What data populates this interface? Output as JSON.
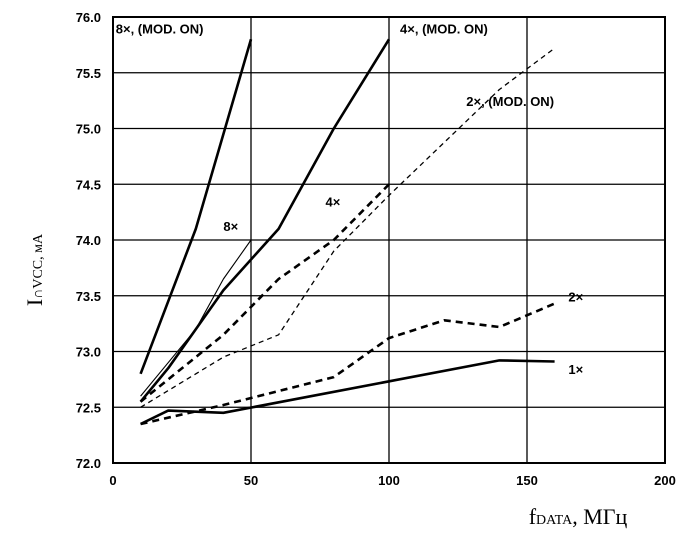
{
  "chart_data": {
    "type": "line",
    "xlabel_main": "f",
    "xlabel_sub": "DATA",
    "xlabel_rest": ", МГц",
    "ylabel_main": "I",
    "ylabel_sub": "∩VCC",
    "ylabel_rest": ", мА",
    "xlim": [
      0,
      200
    ],
    "ylim": [
      72.0,
      76.0
    ],
    "x_ticks": [
      "0",
      "50",
      "100",
      "150",
      "200"
    ],
    "y_ticks": [
      "72.0",
      "72.5",
      "73.0",
      "73.5",
      "74.0",
      "74.5",
      "75.0",
      "75.5",
      "76.0"
    ],
    "grid": true,
    "series": [
      {
        "name": "8×, (MOD. ON)",
        "style": "solid-thick",
        "x": [
          10,
          30,
          50
        ],
        "y": [
          72.8,
          74.1,
          75.8
        ]
      },
      {
        "name": "4×, (MOD. ON)",
        "style": "solid-thick",
        "x": [
          10,
          20,
          40,
          60,
          80,
          100
        ],
        "y": [
          72.55,
          72.85,
          73.55,
          74.1,
          75.0,
          75.8
        ]
      },
      {
        "name": "2×, (MOD. ON)",
        "style": "dashed-thin",
        "x": [
          10,
          40,
          60,
          80,
          100,
          140,
          160
        ],
        "y": [
          72.5,
          72.95,
          73.15,
          73.9,
          74.4,
          75.35,
          75.72
        ]
      },
      {
        "name": "8×",
        "style": "solid-thin",
        "x": [
          10,
          30,
          40,
          50
        ],
        "y": [
          72.6,
          73.2,
          73.65,
          74.0
        ]
      },
      {
        "name": "4×",
        "style": "dashed-thick",
        "x": [
          10,
          40,
          60,
          80,
          100
        ],
        "y": [
          72.55,
          73.15,
          73.65,
          74.0,
          74.5
        ]
      },
      {
        "name": "2×",
        "style": "dashed-thick",
        "x": [
          10,
          40,
          80,
          100,
          120,
          140,
          160
        ],
        "y": [
          72.35,
          72.52,
          72.77,
          73.12,
          73.28,
          73.22,
          73.43
        ]
      },
      {
        "name": "1×",
        "style": "solid-thick",
        "x": [
          10,
          20,
          40,
          140,
          160
        ],
        "y": [
          72.35,
          72.47,
          72.45,
          72.92,
          72.91
        ]
      }
    ],
    "annotations": [
      {
        "text": "8×, (MOD. ON)",
        "x": 1,
        "y": 75.85
      },
      {
        "text": "4×, (MOD. ON)",
        "x": 104,
        "y": 75.85
      },
      {
        "text": "2×, (MOD. ON)",
        "x": 128,
        "y": 75.2
      },
      {
        "text": "8×",
        "x": 40,
        "y": 74.08
      },
      {
        "text": "4×",
        "x": 77,
        "y": 74.3
      },
      {
        "text": "2×",
        "x": 165,
        "y": 73.45
      },
      {
        "text": "1×",
        "x": 165,
        "y": 72.8
      }
    ]
  }
}
